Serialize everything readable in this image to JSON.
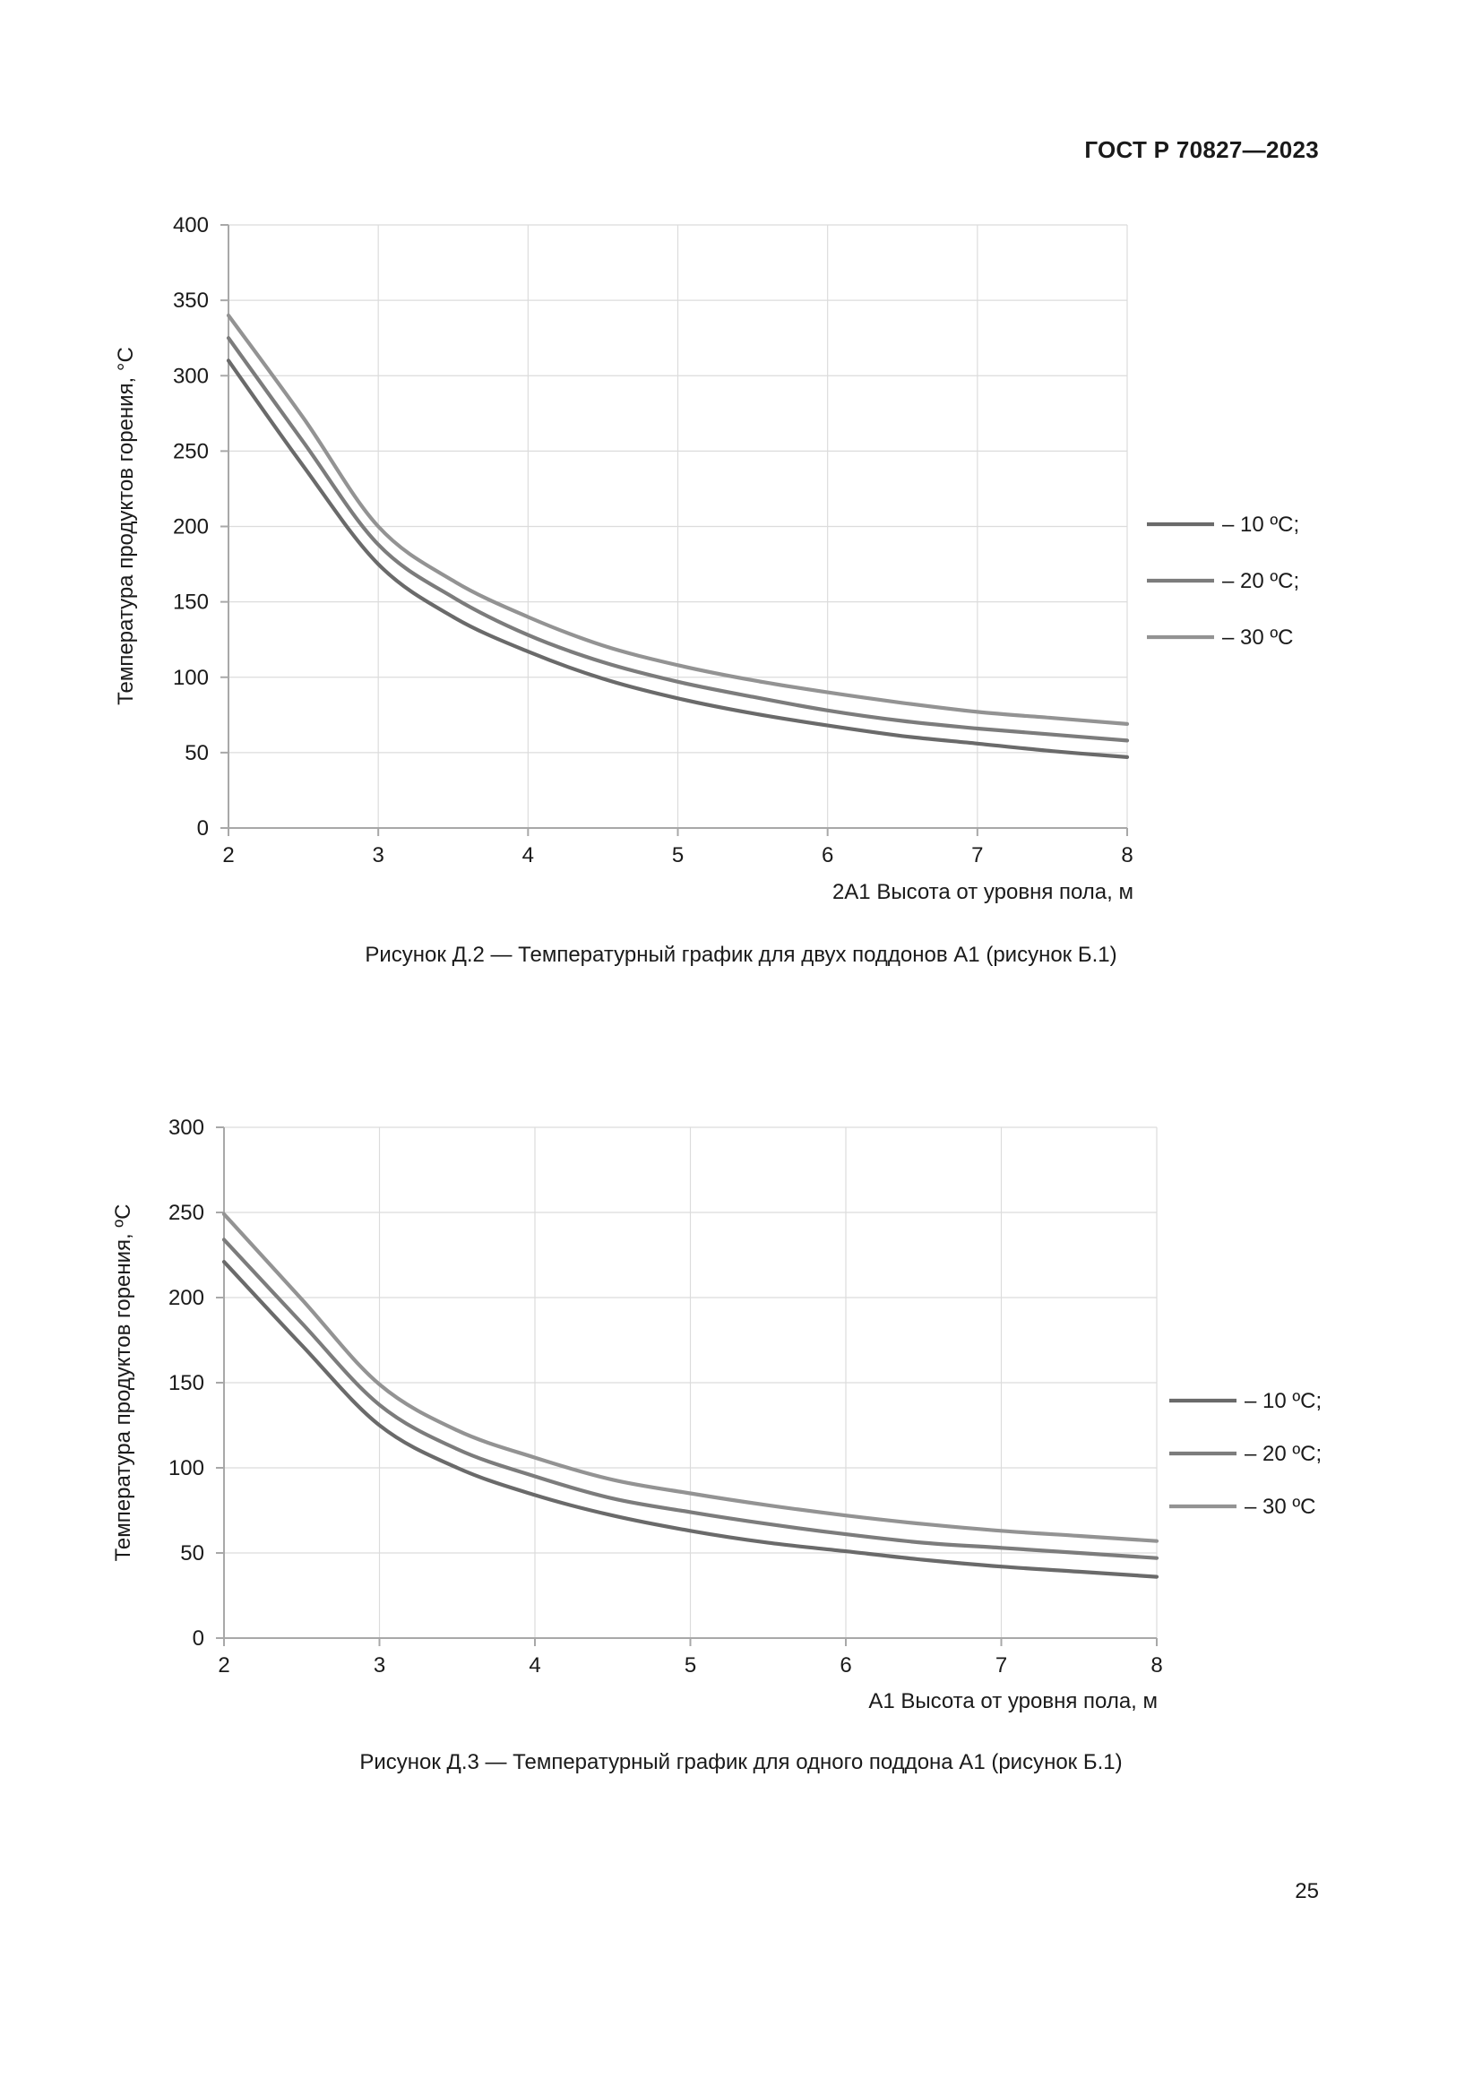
{
  "header": {
    "doc_code": "ГОСТ Р 70827—2023"
  },
  "page_number": "25",
  "colors": {
    "s10": "#6a6a6a",
    "s20": "#7c7c7c",
    "s30": "#939393",
    "grid": "#dcdcdc",
    "axis": "#a8a8a8"
  },
  "figures": [
    {
      "caption": "Рисунок Д.2 — Температурный график для двух поддонов А1 (рисунок Б.1)"
    },
    {
      "caption": "Рисунок Д.3 — Температурный график для одного поддона А1 (рисунок Б.1)"
    }
  ],
  "chart_data": [
    {
      "type": "line",
      "title": "",
      "xlabel": "2А1 Высота от уровня пола, м",
      "ylabel": "Температура продуктов горения, °С",
      "xlim": [
        2,
        8
      ],
      "ylim": [
        0,
        400
      ],
      "xticks": [
        2,
        3,
        4,
        5,
        6,
        7,
        8
      ],
      "yticks": [
        0,
        50,
        100,
        150,
        200,
        250,
        300,
        350,
        400
      ],
      "grid": true,
      "legend_position": "right",
      "x": [
        2,
        2.5,
        3,
        3.5,
        4,
        4.5,
        5,
        5.5,
        6,
        6.5,
        7,
        7.5,
        8
      ],
      "series": [
        {
          "name": "– 10 ºС;",
          "values": [
            310,
            240,
            175,
            140,
            117,
            99,
            86,
            76,
            68,
            61,
            56,
            51,
            47
          ]
        },
        {
          "name": "– 20 ºС;",
          "values": [
            325,
            256,
            188,
            153,
            128,
            110,
            97,
            87,
            78,
            71,
            66,
            62,
            58
          ]
        },
        {
          "name": "– 30 ºС",
          "values": [
            340,
            272,
            200,
            164,
            140,
            121,
            108,
            98,
            90,
            83,
            77,
            73,
            69
          ]
        }
      ]
    },
    {
      "type": "line",
      "title": "",
      "xlabel": "А1 Высота от уровня пола, м",
      "ylabel": "Температура продуктов горения, ºС",
      "xlim": [
        2,
        8
      ],
      "ylim": [
        0,
        300
      ],
      "xticks": [
        2,
        3,
        4,
        5,
        6,
        7,
        8
      ],
      "yticks": [
        0,
        50,
        100,
        150,
        200,
        250,
        300
      ],
      "grid": true,
      "legend_position": "right",
      "x": [
        2,
        2.5,
        3,
        3.5,
        4,
        4.5,
        5,
        5.5,
        6,
        6.5,
        7,
        7.5,
        8
      ],
      "series": [
        {
          "name": "– 10 ºС;",
          "values": [
            221,
            172,
            125,
            100,
            84,
            72,
            63,
            56,
            51,
            46,
            42,
            39,
            36
          ]
        },
        {
          "name": "– 20 ºС;",
          "values": [
            234,
            185,
            137,
            111,
            95,
            82,
            74,
            67,
            61,
            56,
            53,
            50,
            47
          ]
        },
        {
          "name": "– 30 ºС",
          "values": [
            249,
            199,
            149,
            122,
            106,
            93,
            85,
            78,
            72,
            67,
            63,
            60,
            57
          ]
        }
      ]
    }
  ]
}
